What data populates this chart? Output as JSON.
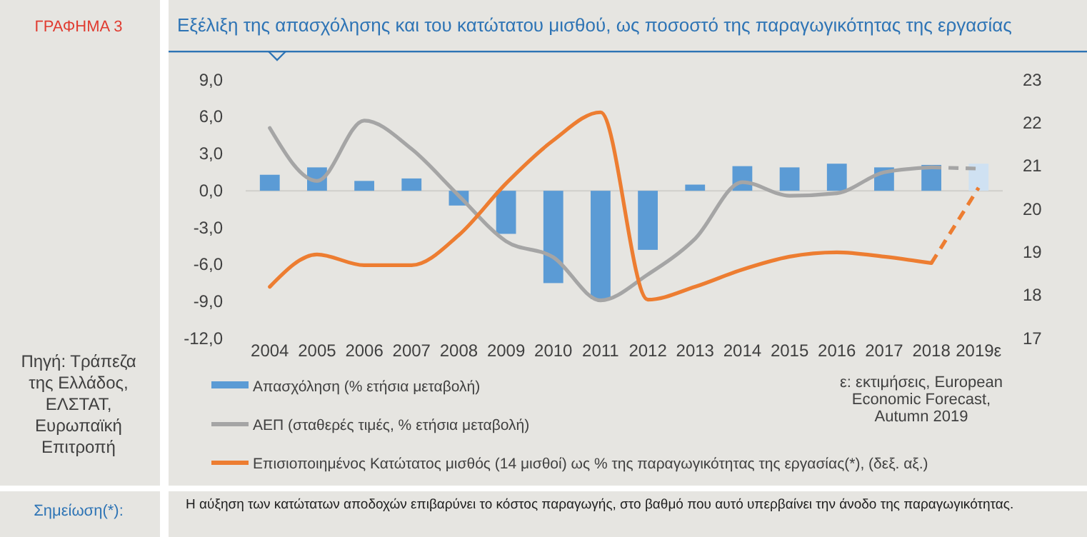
{
  "chart_data": {
    "type": "bar",
    "title": "Εξέλιξη της απασχόλησης και του κατώτατου μισθού, ως ποσοστό της παραγωγικότητας της εργασίας",
    "categories": [
      "2004",
      "2005",
      "2006",
      "2007",
      "2008",
      "2009",
      "2010",
      "2011",
      "2012",
      "2013",
      "2014",
      "2015",
      "2016",
      "2017",
      "2018",
      "2019ε"
    ],
    "series": [
      {
        "name": "Απασχόληση (% ετήσια μεταβολή)",
        "color": "#5b9bd5",
        "colors": [
          "#5b9bd5",
          "#5b9bd5",
          "#5b9bd5",
          "#5b9bd5",
          "#5b9bd5",
          "#5b9bd5",
          "#5b9bd5",
          "#5b9bd5",
          "#5b9bd5",
          "#5b9bd5",
          "#5b9bd5",
          "#5b9bd5",
          "#5b9bd5",
          "#5b9bd5",
          "#5b9bd5",
          "#cfe1f2"
        ],
        "values": [
          1.3,
          1.9,
          0.8,
          1.0,
          -1.2,
          -3.5,
          -7.5,
          -8.8,
          -4.8,
          0.5,
          2.0,
          1.9,
          2.2,
          1.9,
          2.1,
          2.2
        ]
      },
      {
        "name": "ΑΕΠ (σταθερές τιμές, % ετήσια μεταβολή)",
        "type": "line",
        "color": "#a5a5a5",
        "line_style": "solid",
        "values": [
          5.1,
          0.8,
          5.7,
          3.4,
          -0.4,
          -4.1,
          -5.4,
          -8.9,
          -6.8,
          -3.9,
          0.7,
          -0.4,
          -0.2,
          1.5,
          1.9,
          null
        ]
      },
      {
        "type": "line",
        "color": "#a5a5a5",
        "line_style": "dashed",
        "values": [
          null,
          null,
          null,
          null,
          null,
          null,
          null,
          null,
          null,
          null,
          null,
          null,
          null,
          null,
          1.9,
          1.8
        ]
      },
      {
        "name": "Επισιοποιημένος Κατώτατος μισθός (14 μισθοί) ως % της παραγωγικότητας της εργασίας(*), (δεξ. αξ.)",
        "type": "line",
        "axis": "y2",
        "color": "#ed7d31",
        "line_style": "solid",
        "values": [
          18.2,
          18.95,
          18.7,
          18.7,
          19.4,
          20.6,
          21.6,
          22.25,
          17.9,
          18.2,
          18.6,
          18.9,
          19.0,
          18.9,
          18.75,
          null
        ]
      },
      {
        "type": "line",
        "axis": "y2",
        "color": "#ed7d31",
        "line_style": "dashed",
        "values": [
          null,
          null,
          null,
          null,
          null,
          null,
          null,
          null,
          null,
          null,
          null,
          null,
          null,
          null,
          18.75,
          20.5
        ]
      }
    ],
    "ylim": [
      -12,
      9
    ],
    "yticks": [
      {
        "value": -12,
        "label": "-12,0"
      },
      {
        "value": -9,
        "label": "-9,0"
      },
      {
        "value": -6,
        "label": "-6,0"
      },
      {
        "value": -3,
        "label": "-3,0"
      },
      {
        "value": 0,
        "label": "0,0"
      },
      {
        "value": 3,
        "label": "3,0"
      },
      {
        "value": 6,
        "label": "6,0"
      },
      {
        "value": 9,
        "label": "9,0"
      }
    ],
    "y2lim": [
      17,
      23
    ],
    "y2ticks": [
      17,
      18,
      19,
      20,
      21,
      22,
      23
    ],
    "legend": "bottom",
    "marker": "none",
    "annotations": [
      "ΓΡΑΦΗΜΑ 3",
      "Πηγή: Τράπεζα της Ελλάδος, ΕΛΣΤΑΤ, Ευρωπαϊκή Επιτροπή",
      "ε: εκτιμήσεις, European Economic Forecast, Autumn 2019",
      "Σημείωση(*):",
      "Η αύξηση των κατώτατων αποδοχών επιβαρύνει το κόστος παραγωγής, στο βαθμό που αυτό υπερβαίνει την άνοδο της παραγωγικότητας."
    ]
  }
}
